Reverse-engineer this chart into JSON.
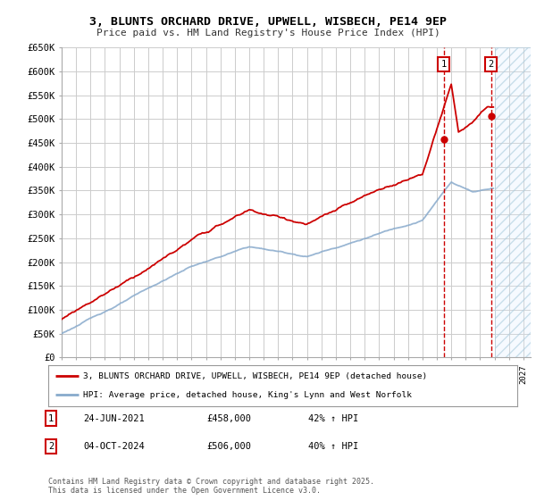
{
  "title": "3, BLUNTS ORCHARD DRIVE, UPWELL, WISBECH, PE14 9EP",
  "subtitle": "Price paid vs. HM Land Registry's House Price Index (HPI)",
  "ylim": [
    0,
    650000
  ],
  "yticks": [
    0,
    50000,
    100000,
    150000,
    200000,
    250000,
    300000,
    350000,
    400000,
    450000,
    500000,
    550000,
    600000,
    650000
  ],
  "ytick_labels": [
    "£0",
    "£50K",
    "£100K",
    "£150K",
    "£200K",
    "£250K",
    "£300K",
    "£350K",
    "£400K",
    "£450K",
    "£500K",
    "£550K",
    "£600K",
    "£650K"
  ],
  "xlim_start": 1995.0,
  "xlim_end": 2027.5,
  "bg_color": "#ffffff",
  "plot_bg_color": "#ffffff",
  "grid_color": "#cccccc",
  "red_color": "#cc0000",
  "blue_color": "#88aacc",
  "hatch_bg_color": "#ddeeff",
  "sale1_x": 2021.48,
  "sale1_y": 458000,
  "sale2_x": 2024.75,
  "sale2_y": 506000,
  "sale1_label": "1",
  "sale2_label": "2",
  "legend_line1": "3, BLUNTS ORCHARD DRIVE, UPWELL, WISBECH, PE14 9EP (detached house)",
  "legend_line2": "HPI: Average price, detached house, King's Lynn and West Norfolk",
  "ann1_num": "1",
  "ann1_date": "24-JUN-2021",
  "ann1_price": "£458,000",
  "ann1_hpi": "42% ↑ HPI",
  "ann2_num": "2",
  "ann2_date": "04-OCT-2024",
  "ann2_price": "£506,000",
  "ann2_hpi": "40% ↑ HPI",
  "copyright": "Contains HM Land Registry data © Crown copyright and database right 2025.\nThis data is licensed under the Open Government Licence v3.0.",
  "future_start": 2025.0
}
